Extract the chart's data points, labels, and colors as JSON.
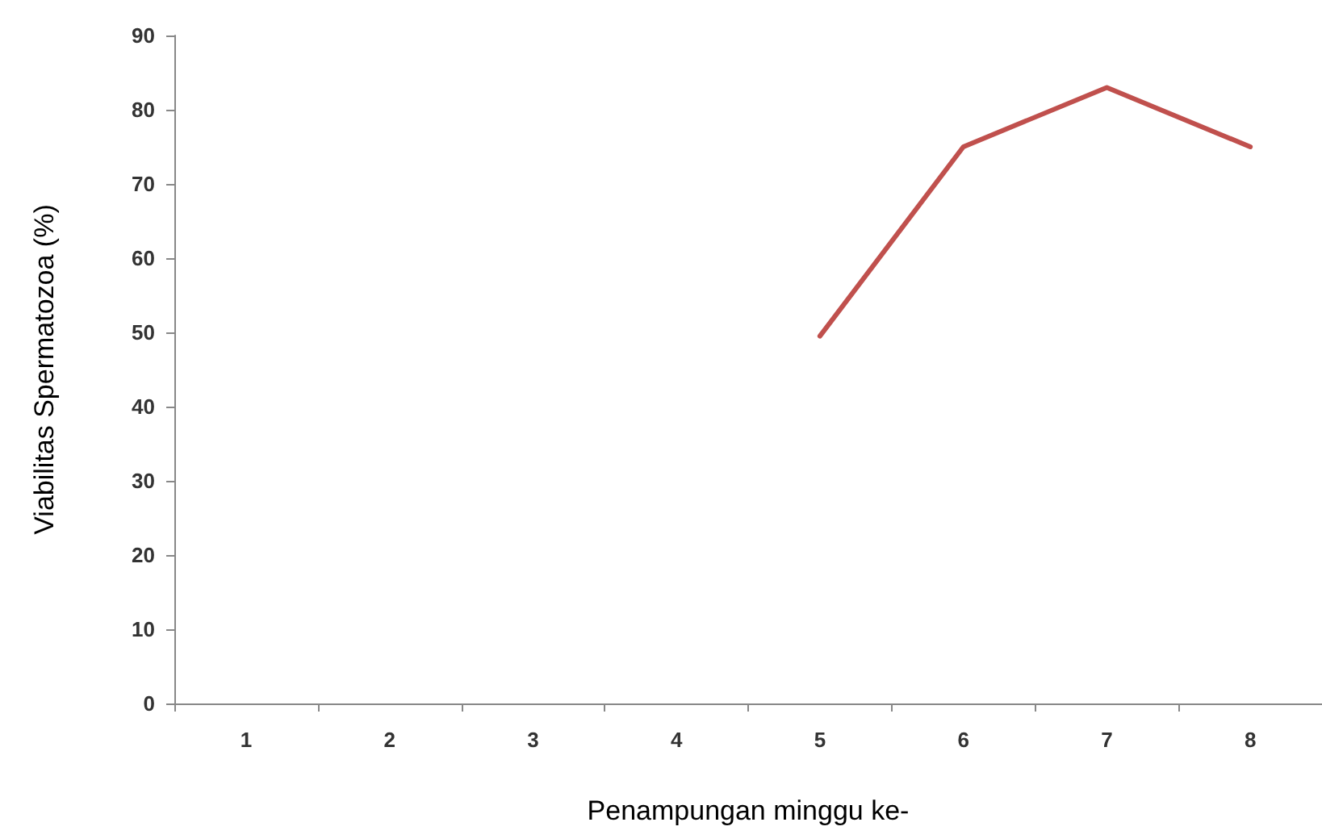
{
  "chart_data": {
    "type": "line",
    "xlabel": "Penampungan minggu ke-",
    "ylabel": "Viabilitas Spermatozoa (%)",
    "categories": [
      "1",
      "2",
      "3",
      "4",
      "5",
      "6",
      "7",
      "8"
    ],
    "series": [
      {
        "color": "#c0504d",
        "values": [
          null,
          null,
          null,
          null,
          49.5,
          75,
          83,
          75
        ]
      }
    ],
    "ylim": [
      0,
      90
    ],
    "yticks": [
      0,
      10,
      20,
      30,
      40,
      50,
      60,
      70,
      80,
      90
    ],
    "grid": false,
    "marker": "none",
    "line_style": "solid"
  }
}
